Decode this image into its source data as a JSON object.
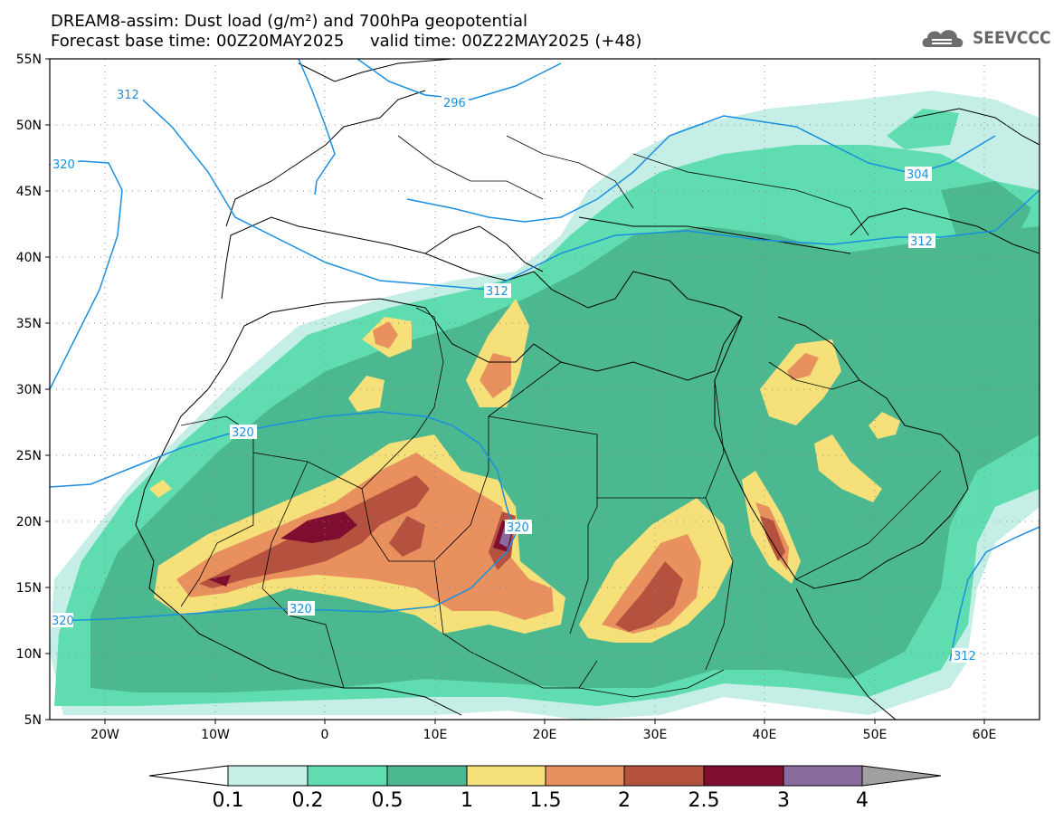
{
  "header": {
    "line1": "DREAM8-assim: Dust load (g/m²) and 700hPa geopotential",
    "line2": "Forecast base time: 00Z20MAY2025     valid time: 00Z22MAY2025 (+48)"
  },
  "logo": {
    "text": "SEEVCCC",
    "icon": "cloud-logo-icon"
  },
  "axes": {
    "lat_labels": [
      "55N",
      "50N",
      "45N",
      "40N",
      "35N",
      "30N",
      "25N",
      "20N",
      "15N",
      "10N",
      "5N"
    ],
    "lon_labels": [
      "20W",
      "10W",
      "0",
      "10E",
      "20E",
      "30E",
      "40E",
      "50E",
      "60E"
    ]
  },
  "contours": {
    "labels": [
      "312",
      "296",
      "320",
      "304",
      "312",
      "312",
      "320",
      "320",
      "320",
      "320",
      "312"
    ]
  },
  "colorbar": {
    "ticks": [
      "0.1",
      "0.2",
      "0.5",
      "1",
      "1.5",
      "2",
      "2.5",
      "3",
      "4"
    ],
    "colors": [
      "#c4eee6",
      "#5fdcb0",
      "#4cb88f",
      "#f5e07a",
      "#e8905e",
      "#b5523f",
      "#7f0d30",
      "#8a6a9e",
      "#a0a0a0"
    ]
  }
}
